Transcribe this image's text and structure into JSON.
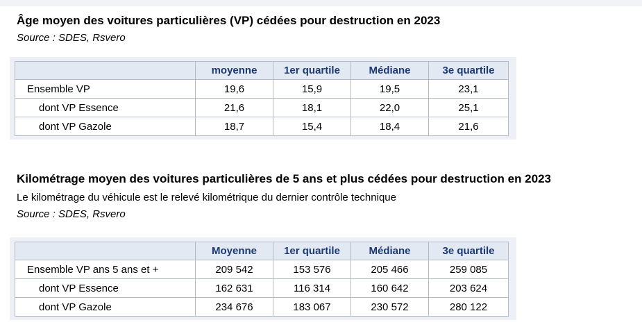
{
  "colors": {
    "header_bg": "#e3e9f3",
    "header_text": "#1c3973",
    "panel_bg": "#edf0f7",
    "inner_border": "#b5bbc5",
    "outer_border": "#939ba7",
    "top_strip": "#f1f3f7"
  },
  "age_section": {
    "title": "Âge moyen des voitures particulières (VP) cédées pour destruction en 2023",
    "source": "Source : SDES, Rsvero",
    "table": {
      "headers": [
        "",
        "moyenne",
        "1er quartile",
        "Médiane",
        "3e quartile"
      ],
      "rows": [
        {
          "label": "Ensemble VP",
          "values": [
            "19,6",
            "15,9",
            "19,5",
            "23,1"
          ]
        },
        {
          "label": "dont VP Essence",
          "values": [
            "21,6",
            "18,1",
            "22,0",
            "25,1"
          ]
        },
        {
          "label": "dont VP Gazole",
          "values": [
            "18,7",
            "15,4",
            "18,4",
            "21,6"
          ]
        }
      ]
    }
  },
  "km_section": {
    "title": "Kilométrage moyen des voitures particulières de 5 ans et plus cédées pour destruction en 2023",
    "subtitle": "Le kilométrage du véhicule est le relevé kilométrique du dernier contrôle technique",
    "source": "Source : SDES, Rsvero",
    "table": {
      "headers": [
        "",
        "Moyenne",
        "1er quartile",
        "Médiane",
        "3e quartile"
      ],
      "rows": [
        {
          "label": "Ensemble VP ans 5 ans et +",
          "values": [
            "209 542",
            "153 576",
            "205 466",
            "259 085"
          ]
        },
        {
          "label": "dont VP Essence",
          "values": [
            "162 631",
            "116 314",
            "160 642",
            "203 624"
          ]
        },
        {
          "label": "dont VP Gazole",
          "values": [
            "234 676",
            "183 067",
            "230 572",
            "280 122"
          ]
        }
      ]
    }
  }
}
